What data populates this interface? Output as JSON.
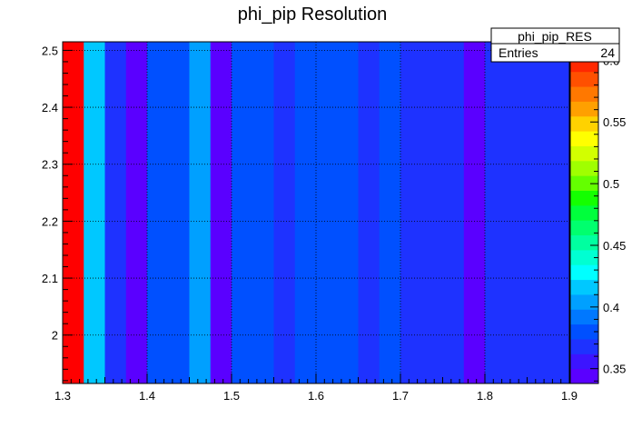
{
  "chart_data": {
    "type": "heatmap",
    "title": "phi_pip Resolution",
    "xlabel": "",
    "ylabel": "",
    "xlim": [
      1.3,
      1.9
    ],
    "ylim": [
      1.915,
      2.515
    ],
    "xticks": [
      1.3,
      1.4,
      1.5,
      1.6,
      1.7,
      1.8,
      1.9
    ],
    "xtick_labels": [
      "1.3",
      "1.4",
      "1.5",
      "1.6",
      "1.7",
      "1.8",
      "1.9"
    ],
    "yticks": [
      2.0,
      2.1,
      2.2,
      2.3,
      2.4,
      2.5
    ],
    "ytick_labels": [
      "2",
      "2.1",
      "2.2",
      "2.3",
      "2.4",
      "2.5"
    ],
    "grid": true,
    "x_bins": [
      [
        1.3,
        1.325
      ],
      [
        1.325,
        1.35
      ],
      [
        1.35,
        1.375
      ],
      [
        1.375,
        1.4
      ],
      [
        1.4,
        1.425
      ],
      [
        1.425,
        1.45
      ],
      [
        1.45,
        1.475
      ],
      [
        1.475,
        1.5
      ],
      [
        1.5,
        1.525
      ],
      [
        1.525,
        1.55
      ],
      [
        1.55,
        1.575
      ],
      [
        1.575,
        1.6
      ],
      [
        1.6,
        1.625
      ],
      [
        1.625,
        1.65
      ],
      [
        1.65,
        1.675
      ],
      [
        1.675,
        1.7
      ],
      [
        1.7,
        1.725
      ],
      [
        1.725,
        1.75
      ],
      [
        1.75,
        1.775
      ],
      [
        1.775,
        1.8
      ],
      [
        1.8,
        1.825
      ],
      [
        1.825,
        1.85
      ],
      [
        1.85,
        1.875
      ],
      [
        1.875,
        1.9
      ]
    ],
    "values": [
      0.61,
      0.42,
      0.365,
      0.345,
      0.38,
      0.375,
      0.405,
      0.345,
      0.38,
      0.38,
      0.365,
      0.38,
      0.38,
      0.38,
      0.365,
      0.38,
      0.37,
      0.37,
      0.37,
      0.35,
      0.37,
      0.37,
      0.37,
      0.37
    ],
    "zlim": [
      0.338,
      0.615
    ],
    "colorbar": {
      "ticks": [
        0.35,
        0.4,
        0.45,
        0.5,
        0.55,
        0.6
      ],
      "tick_labels": [
        "0.35",
        "0.4",
        "0.45",
        "0.5",
        "0.55",
        "0.6"
      ],
      "colors": [
        "#5a00ff",
        "#3c14ff",
        "#1e32ff",
        "#0050ff",
        "#0078ff",
        "#00a0ff",
        "#00c8ff",
        "#00ffff",
        "#00ffd2",
        "#00ffa0",
        "#00ff6e",
        "#00ff3c",
        "#14ff00",
        "#64ff00",
        "#a0ff00",
        "#d2ff00",
        "#ffff00",
        "#ffd200",
        "#ffa000",
        "#ff7800",
        "#ff5000",
        "#ff2800",
        "#ff0000"
      ]
    }
  },
  "stats_box": {
    "name": "phi_pip_RES",
    "entries_label": "Entries",
    "entries_value": "24"
  }
}
